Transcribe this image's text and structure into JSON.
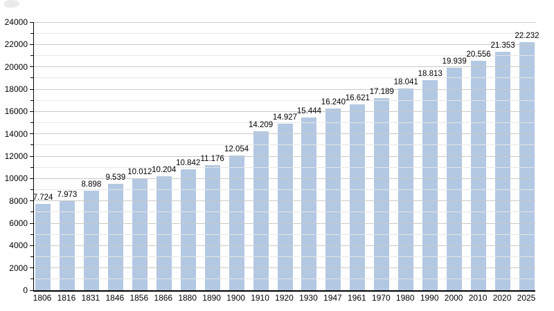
{
  "chart_data": {
    "type": "bar",
    "title": "",
    "xlabel": "",
    "ylabel": "",
    "categories": [
      "1806",
      "1816",
      "1831",
      "1846",
      "1856",
      "1866",
      "1880",
      "1890",
      "1900",
      "1910",
      "1920",
      "1930",
      "1947",
      "1961",
      "1970",
      "1980",
      "1990",
      "2000",
      "2010",
      "2020",
      "2025"
    ],
    "values": [
      7724,
      7973,
      8898,
      9539,
      10012,
      10204,
      10842,
      11176,
      12054,
      14209,
      14927,
      15444,
      16240,
      16621,
      17189,
      18041,
      18813,
      19939,
      20556,
      21353,
      22232
    ],
    "value_labels": [
      "7.724",
      "7.973",
      "8.898",
      "9.539",
      "10.012",
      "10.204",
      "10.842",
      "11.176",
      "12.054",
      "14.209",
      "14.927",
      "15.444",
      "16.240",
      "16.621",
      "17.189",
      "18.041",
      "18.813",
      "19.939",
      "20.556",
      "21.353",
      "22.232"
    ],
    "ylim": [
      0,
      24000
    ],
    "y_tick_step_major": 2000,
    "y_tick_step_minor": 1000,
    "y_tick_labels": [
      "0",
      "2000",
      "4000",
      "6000",
      "8000",
      "10000",
      "12000",
      "14000",
      "16000",
      "18000",
      "20000",
      "22000",
      "24000"
    ],
    "grid": "on",
    "legend": "none",
    "bar_color": "#b3c8e2",
    "axis_color": "#000000",
    "grid_major_color": "#c9c9c9",
    "grid_minor_color": "#e6e6e6",
    "label_color": "#000000"
  }
}
